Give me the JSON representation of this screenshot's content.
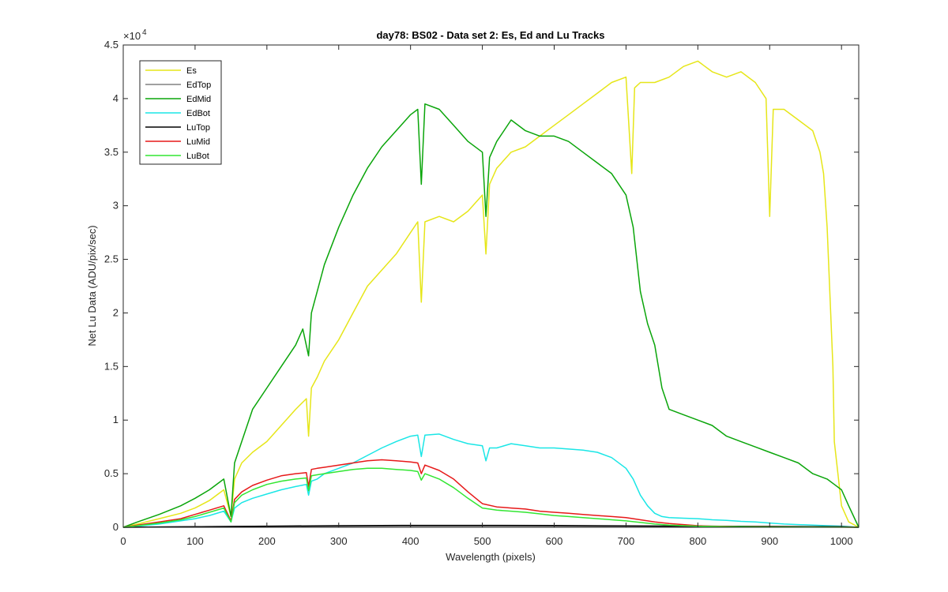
{
  "chart_data": {
    "type": "line",
    "title": "day78: BS02 - Data set 2: Es, Ed and Lu Tracks",
    "xlabel": "Wavelength (pixels)",
    "ylabel": "Net Lu Data (ADU/pix/sec)",
    "y_exponent_base": "×10",
    "y_exponent_power": "4",
    "xlim": [
      0,
      1024
    ],
    "ylim": [
      0,
      45000
    ],
    "x_ticks": [
      0,
      100,
      200,
      300,
      400,
      500,
      600,
      700,
      800,
      900,
      1000
    ],
    "x_tick_labels": [
      "0",
      "100",
      "200",
      "300",
      "400",
      "500",
      "600",
      "700",
      "800",
      "900",
      "1000"
    ],
    "y_ticks": [
      0,
      5000,
      10000,
      15000,
      20000,
      25000,
      30000,
      35000,
      40000,
      45000
    ],
    "y_tick_labels": [
      "0",
      "0.5",
      "1",
      "1.5",
      "2",
      "2.5",
      "3",
      "3.5",
      "4",
      "4.5"
    ],
    "grid": false,
    "legend_position": "top-left",
    "series": [
      {
        "name": "Es",
        "color": "#e6e619",
        "x": [
          0,
          20,
          50,
          80,
          100,
          120,
          140,
          150,
          155,
          165,
          180,
          200,
          220,
          240,
          255,
          258,
          262,
          270,
          280,
          300,
          320,
          340,
          360,
          380,
          400,
          410,
          415,
          420,
          440,
          460,
          480,
          500,
          505,
          510,
          520,
          540,
          560,
          580,
          600,
          620,
          640,
          660,
          680,
          700,
          708,
          712,
          720,
          740,
          760,
          780,
          800,
          820,
          840,
          860,
          880,
          895,
          900,
          905,
          920,
          940,
          960,
          970,
          975,
          980,
          985,
          988,
          990,
          1000,
          1010,
          1024
        ],
        "y": [
          0,
          300,
          800,
          1300,
          1800,
          2500,
          3500,
          1000,
          4500,
          6000,
          7000,
          8000,
          9500,
          11000,
          12000,
          8500,
          13000,
          14000,
          15500,
          17500,
          20000,
          22500,
          24000,
          25500,
          27500,
          28500,
          21000,
          28500,
          29000,
          28500,
          29500,
          31000,
          25500,
          32000,
          33500,
          35000,
          35500,
          36500,
          37500,
          38500,
          39500,
          40500,
          41500,
          42000,
          33000,
          41000,
          41500,
          41500,
          42000,
          43000,
          43500,
          42500,
          42000,
          42500,
          41500,
          40000,
          29000,
          39000,
          39000,
          38000,
          37000,
          35000,
          33000,
          28000,
          20000,
          15000,
          8000,
          2000,
          500,
          0
        ]
      },
      {
        "name": "EdTop",
        "color": "#808080",
        "x": [
          0,
          100,
          200,
          300,
          400,
          500,
          600,
          700,
          800,
          900,
          1000,
          1024
        ],
        "y": [
          0,
          50,
          80,
          100,
          120,
          120,
          110,
          100,
          80,
          60,
          50,
          0
        ]
      },
      {
        "name": "EdMid",
        "color": "#0aa50a",
        "x": [
          0,
          20,
          50,
          80,
          100,
          120,
          140,
          150,
          155,
          165,
          180,
          200,
          220,
          240,
          250,
          258,
          262,
          270,
          280,
          300,
          320,
          340,
          360,
          380,
          400,
          410,
          415,
          420,
          440,
          460,
          480,
          500,
          505,
          510,
          520,
          540,
          560,
          580,
          600,
          620,
          640,
          660,
          680,
          700,
          710,
          720,
          730,
          740,
          750,
          760,
          780,
          800,
          820,
          840,
          860,
          880,
          900,
          920,
          940,
          960,
          980,
          990,
          1000,
          1010,
          1024
        ],
        "y": [
          0,
          500,
          1200,
          2000,
          2700,
          3500,
          4500,
          1000,
          6000,
          8000,
          11000,
          13000,
          15000,
          17000,
          18500,
          16000,
          20000,
          22000,
          24500,
          28000,
          31000,
          33500,
          35500,
          37000,
          38500,
          39000,
          32000,
          39500,
          39000,
          37500,
          36000,
          35000,
          29000,
          34500,
          36000,
          38000,
          37000,
          36500,
          36500,
          36000,
          35000,
          34000,
          33000,
          31000,
          28000,
          22000,
          19000,
          17000,
          13000,
          11000,
          10500,
          10000,
          9500,
          8500,
          8000,
          7500,
          7000,
          6500,
          6000,
          5000,
          4500,
          4000,
          3500,
          2000,
          0
        ]
      },
      {
        "name": "EdBot",
        "color": "#1ae6e6",
        "x": [
          0,
          20,
          50,
          80,
          100,
          120,
          140,
          150,
          155,
          165,
          180,
          200,
          220,
          240,
          255,
          258,
          262,
          270,
          280,
          300,
          320,
          340,
          360,
          380,
          400,
          410,
          415,
          420,
          440,
          460,
          480,
          500,
          505,
          510,
          520,
          540,
          560,
          580,
          600,
          620,
          640,
          660,
          680,
          700,
          710,
          720,
          730,
          740,
          750,
          760,
          780,
          800,
          820,
          840,
          860,
          880,
          900,
          920,
          940,
          960,
          980,
          1000,
          1024
        ],
        "y": [
          0,
          100,
          300,
          600,
          800,
          1100,
          1500,
          500,
          1800,
          2300,
          2700,
          3100,
          3500,
          3800,
          4000,
          3000,
          4300,
          4500,
          5000,
          5500,
          6000,
          6700,
          7400,
          8000,
          8500,
          8600,
          6600,
          8600,
          8700,
          8200,
          7800,
          7600,
          6200,
          7400,
          7400,
          7800,
          7600,
          7400,
          7400,
          7300,
          7200,
          7000,
          6500,
          5500,
          4500,
          3000,
          2000,
          1300,
          1000,
          900,
          850,
          800,
          700,
          650,
          550,
          500,
          400,
          300,
          250,
          200,
          150,
          100,
          0
        ]
      },
      {
        "name": "LuTop",
        "color": "#000000",
        "x": [
          0,
          100,
          200,
          300,
          400,
          500,
          600,
          700,
          800,
          900,
          1000,
          1024
        ],
        "y": [
          0,
          50,
          100,
          150,
          180,
          180,
          160,
          130,
          100,
          80,
          50,
          0
        ]
      },
      {
        "name": "LuMid",
        "color": "#e61919",
        "x": [
          0,
          20,
          50,
          80,
          100,
          120,
          140,
          150,
          155,
          165,
          180,
          200,
          220,
          240,
          255,
          258,
          262,
          270,
          280,
          300,
          320,
          340,
          360,
          380,
          400,
          410,
          415,
          420,
          440,
          460,
          480,
          500,
          520,
          540,
          560,
          580,
          600,
          620,
          640,
          660,
          680,
          700,
          720,
          740,
          760,
          780,
          800,
          820,
          840,
          860,
          880,
          900,
          950,
          1000,
          1024
        ],
        "y": [
          0,
          200,
          500,
          800,
          1200,
          1600,
          2000,
          600,
          2600,
          3300,
          3900,
          4400,
          4800,
          5000,
          5100,
          3800,
          5400,
          5500,
          5600,
          5800,
          6000,
          6200,
          6300,
          6200,
          6100,
          6000,
          5000,
          5800,
          5300,
          4500,
          3300,
          2200,
          1900,
          1800,
          1700,
          1500,
          1400,
          1300,
          1200,
          1100,
          1000,
          900,
          700,
          500,
          350,
          250,
          150,
          100,
          80,
          60,
          50,
          40,
          30,
          20,
          0
        ]
      },
      {
        "name": "LuBot",
        "color": "#32e632",
        "x": [
          0,
          20,
          50,
          80,
          100,
          120,
          140,
          150,
          155,
          165,
          180,
          200,
          220,
          240,
          255,
          258,
          262,
          270,
          280,
          300,
          320,
          340,
          360,
          380,
          400,
          410,
          415,
          420,
          440,
          460,
          480,
          500,
          520,
          540,
          560,
          580,
          600,
          620,
          640,
          660,
          680,
          700,
          720,
          740,
          760,
          780,
          800,
          820,
          840,
          860,
          880,
          900,
          950,
          1000,
          1024
        ],
        "y": [
          0,
          150,
          400,
          700,
          1000,
          1400,
          1800,
          500,
          2300,
          3000,
          3500,
          4000,
          4300,
          4500,
          4600,
          3400,
          4800,
          4900,
          5000,
          5200,
          5400,
          5500,
          5500,
          5400,
          5300,
          5200,
          4400,
          5000,
          4500,
          3700,
          2700,
          1800,
          1600,
          1500,
          1400,
          1250,
          1100,
          1000,
          900,
          800,
          700,
          600,
          450,
          300,
          200,
          150,
          100,
          80,
          60,
          50,
          40,
          30,
          20,
          10,
          0
        ]
      }
    ]
  }
}
